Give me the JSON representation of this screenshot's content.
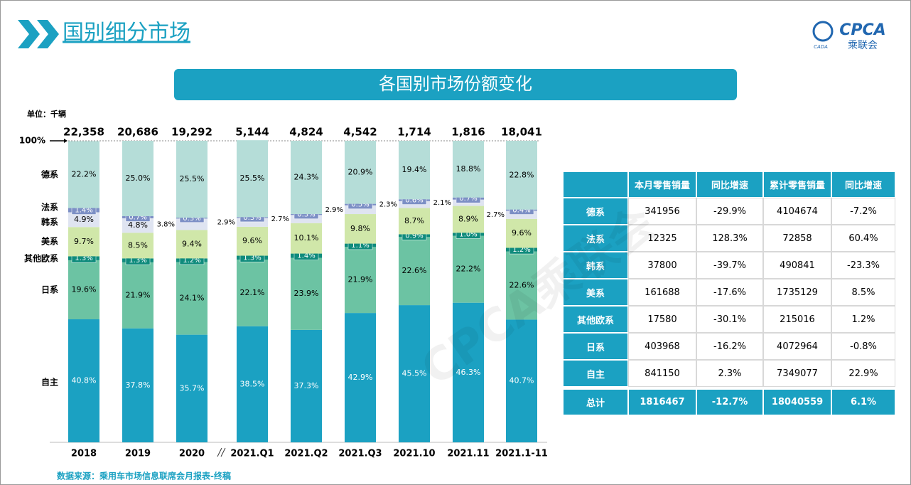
{
  "header": {
    "title": "国别细分市场",
    "logo_text": "CPCA",
    "logo_sub": "乘联会",
    "logo_small": "CADA"
  },
  "watermark": "CPCA乘联会",
  "chart_data": {
    "type": "bar",
    "stacked": true,
    "title": "各国别市场份额变化",
    "unit_label": "单位：千辆",
    "categories": [
      "2018",
      "2019",
      "2020",
      "2021.Q1",
      "2021.Q2",
      "2021.Q3",
      "2021.10",
      "2021.11",
      "2021.1-11"
    ],
    "totals": {
      "values": [
        22358,
        20686,
        19292,
        5144,
        4824,
        4542,
        1714,
        1816,
        18041
      ],
      "value_labels": [
        "22,358",
        "20,686",
        "19,292",
        "5,144",
        "4,824",
        "4,542",
        "1,714",
        "1,816",
        "18,041"
      ]
    },
    "ylim": [
      0,
      100
    ],
    "yticks": [
      {
        "value": 100,
        "label": "100%"
      }
    ],
    "series": [
      {
        "name": "自主",
        "color": "#1ba1c2",
        "values": [
          40.8,
          37.8,
          35.7,
          38.5,
          37.3,
          42.9,
          45.5,
          46.3,
          40.7
        ],
        "value_labels": [
          "40.8%",
          "37.8%",
          "35.7%",
          "38.5%",
          "37.3%",
          "42.9%",
          "45.5%",
          "46.3%",
          "40.7%"
        ]
      },
      {
        "name": "日系",
        "color": "#6cc3a3",
        "values": [
          19.6,
          21.9,
          24.1,
          22.1,
          23.9,
          21.9,
          22.6,
          22.2,
          22.6
        ],
        "value_labels": [
          "19.6%",
          "21.9%",
          "24.1%",
          "22.1%",
          "23.9%",
          "21.9%",
          "22.6%",
          "22.2%",
          "22.6%"
        ]
      },
      {
        "name": "其他欧系",
        "color": "#0f8b7c",
        "values": [
          1.3,
          1.3,
          1.2,
          1.3,
          1.4,
          1.1,
          0.9,
          1.0,
          1.2
        ],
        "value_labels": [
          "1.3%",
          "1.3%",
          "1.2%",
          "1.3%",
          "1.4%",
          "1.1%",
          "0.9%",
          "1.0%",
          "1.2%"
        ]
      },
      {
        "name": "美系",
        "color": "#d0e7a9",
        "values": [
          9.7,
          8.5,
          9.4,
          9.6,
          10.1,
          9.8,
          8.7,
          8.9,
          9.6
        ],
        "value_labels": [
          "9.7%",
          "8.5%",
          "9.4%",
          "9.6%",
          "10.1%",
          "9.8%",
          "8.7%",
          "8.9%",
          "9.6%"
        ]
      },
      {
        "name": "韩系",
        "color": "#dfe4f1",
        "values": [
          4.9,
          4.8,
          3.8,
          2.9,
          2.7,
          2.9,
          2.3,
          2.1,
          2.7
        ],
        "value_labels": [
          "4.9%",
          "4.8%",
          "3.8%",
          "2.9%",
          "2.7%",
          "2.9%",
          "2.3%",
          "2.1%",
          "2.7%"
        ]
      },
      {
        "name": "法系",
        "color": "#7c8fc5",
        "values": [
          1.4,
          0.7,
          0.3,
          0.3,
          0.3,
          0.5,
          0.6,
          0.7,
          0.4
        ],
        "value_labels": [
          "1.4%",
          "0.7%",
          "0.3%",
          "0.3%",
          "0.3%",
          "0.5%",
          "0.6%",
          "0.7%",
          "0.4%"
        ]
      },
      {
        "name": "德系",
        "color": "#b5ddd8",
        "values": [
          22.2,
          25.0,
          25.5,
          25.5,
          24.3,
          20.9,
          19.4,
          18.8,
          22.8
        ],
        "value_labels": [
          "22.2%",
          "25.0%",
          "25.5%",
          "25.5%",
          "24.3%",
          "20.9%",
          "19.4%",
          "18.8%",
          "22.8%"
        ]
      }
    ],
    "source": "数据来源：乘用车市场信息联席会月报表-终稿"
  },
  "table": {
    "header": [
      "",
      "本月零售销量",
      "同比增速",
      "累计零售销量",
      "同比增速"
    ],
    "rows": [
      [
        "德系",
        "341956",
        "-29.9%",
        "4104674",
        "-7.2%"
      ],
      [
        "法系",
        "12325",
        "128.3%",
        "72858",
        "60.4%"
      ],
      [
        "韩系",
        "37800",
        "-39.7%",
        "490841",
        "-23.3%"
      ],
      [
        "美系",
        "161688",
        "-17.6%",
        "1735129",
        "8.5%"
      ],
      [
        "其他欧系",
        "17580",
        "-30.1%",
        "215016",
        "1.2%"
      ],
      [
        "日系",
        "403968",
        "-16.2%",
        "4072964",
        "-0.8%"
      ],
      [
        "自主",
        "841150",
        "2.3%",
        "7349077",
        "22.9%"
      ]
    ],
    "total": [
      "总计",
      "1816467",
      "-12.7%",
      "18040559",
      "6.1%"
    ]
  }
}
